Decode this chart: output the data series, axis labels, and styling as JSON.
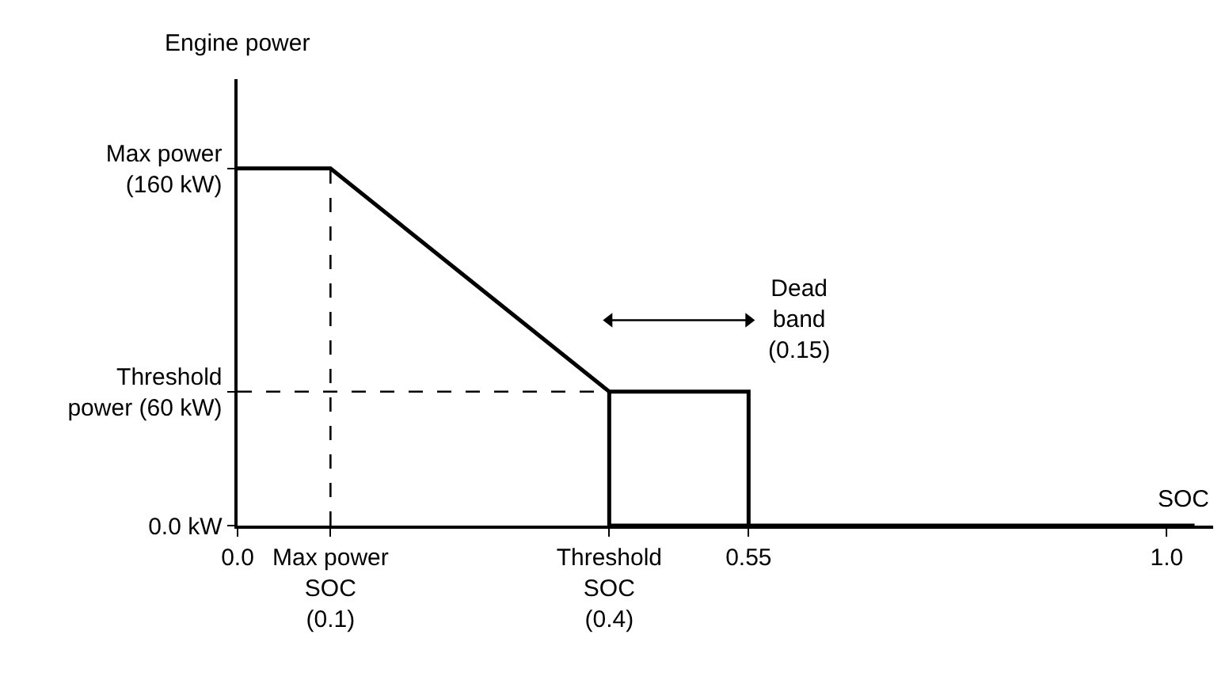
{
  "chart_data": {
    "type": "line",
    "xlabel": "SOC",
    "ylabel": "Engine power",
    "xlim": [
      0,
      1.05
    ],
    "ylim": [
      0,
      200
    ],
    "xticks": [
      {
        "value": 0,
        "label": "0.0"
      },
      {
        "value": 0.1,
        "label": "Max power\nSOC\n(0.1)"
      },
      {
        "value": 0.4,
        "label": "Threshold\nSOC\n(0.4)"
      },
      {
        "value": 0.55,
        "label": "0.55"
      },
      {
        "value": 1.0,
        "label": "1.0"
      }
    ],
    "yticks": [
      {
        "value": 0,
        "label": "0.0 kW"
      },
      {
        "value": 60,
        "label": "Threshold\npower (60 kW)"
      },
      {
        "value": 160,
        "label": "Max power\n(160 kW)"
      }
    ],
    "series": [
      {
        "color": "#000000",
        "x": [
          0,
          0.1,
          0.4,
          0.55,
          0.55,
          0.4,
          0.4,
          0.4,
          0.55,
          1.03
        ],
        "values": [
          160,
          160,
          60,
          60,
          0,
          0,
          60,
          0,
          0,
          0
        ]
      },
      {
        "color": "#000000",
        "line_style": "dashed",
        "x": [
          0.1,
          0.1
        ],
        "values": [
          0,
          160
        ]
      },
      {
        "color": "#000000",
        "line_style": "dashed",
        "x": [
          0,
          0.4
        ],
        "values": [
          60,
          60
        ]
      },
      {
        "color": "#000000",
        "marker": "triangle",
        "x": [
          0.4,
          0.55
        ],
        "values": [
          92,
          92
        ]
      }
    ],
    "annotations": [
      {
        "text": "Dead\nband\n(0.15)",
        "x": 0.55,
        "y": 92
      }
    ],
    "marker": "none"
  }
}
